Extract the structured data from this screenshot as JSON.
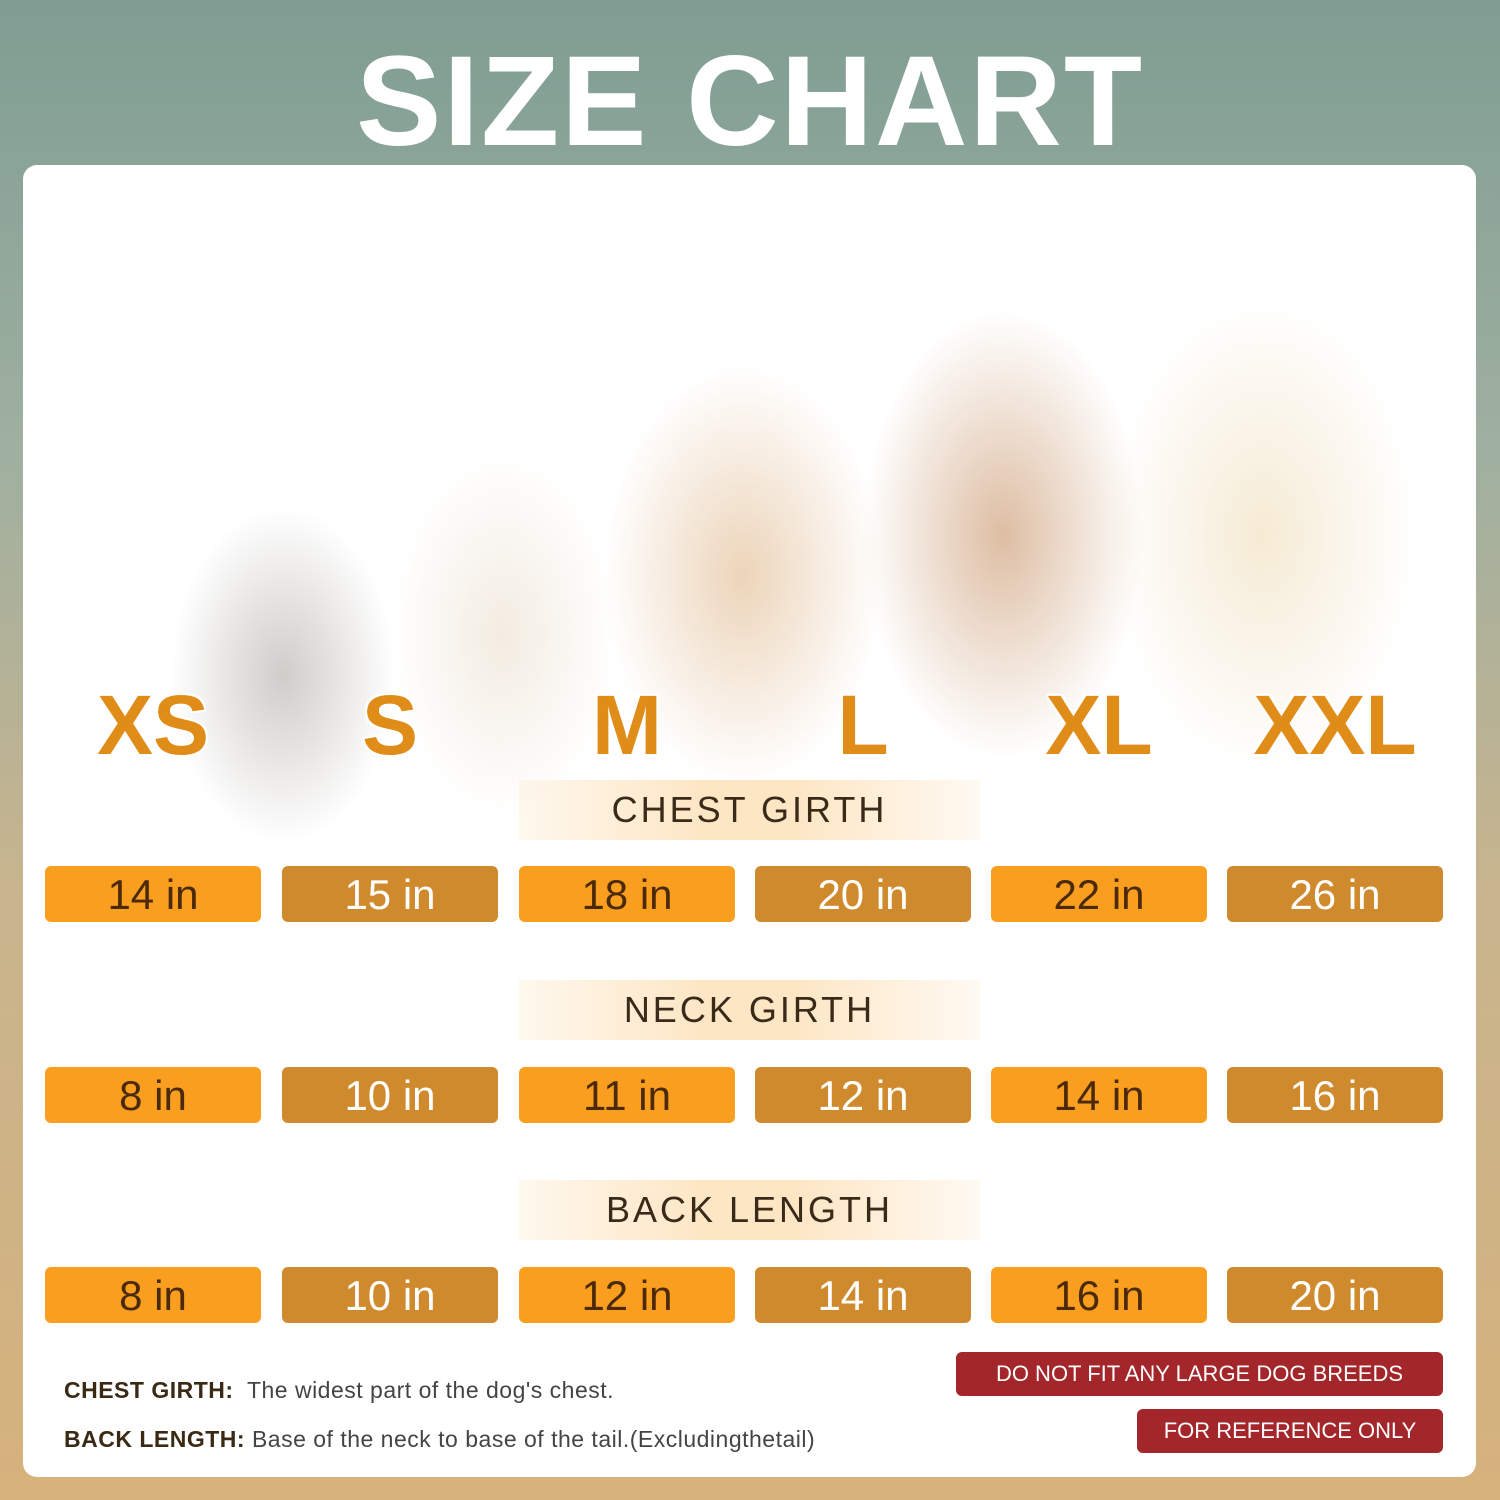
{
  "title": "SIZE CHART",
  "sizes": [
    "XS",
    "S",
    "M",
    "L",
    "XL",
    "XXL"
  ],
  "sections": [
    {
      "label": "CHEST GIRTH",
      "values": [
        "14 in",
        "15 in",
        "18 in",
        "20 in",
        "22 in",
        "26 in"
      ]
    },
    {
      "label": "NECK GIRTH",
      "values": [
        "8 in",
        "10 in",
        "11 in",
        "12 in",
        "14 in",
        "16 in"
      ]
    },
    {
      "label": "BACK LENGTH",
      "values": [
        "8 in",
        "10 in",
        "12 in",
        "14 in",
        "16 in",
        "20 in"
      ]
    }
  ],
  "notes": [
    {
      "term": "CHEST GIRTH:",
      "text": "The widest part of the dog's chest."
    },
    {
      "term": "BACK LENGTH:",
      "text": "Base of the neck to base of the tail.(Excludingthetail)"
    }
  ],
  "warnings": [
    "DO NOT FIT ANY LARGE DOG BREEDS",
    "FOR REFERENCE ONLY"
  ],
  "colors": {
    "cell_light": "#F99E1E",
    "cell_dark": "#D08A2E",
    "size_label": "#DF8D18",
    "warning": "#A3262A"
  }
}
